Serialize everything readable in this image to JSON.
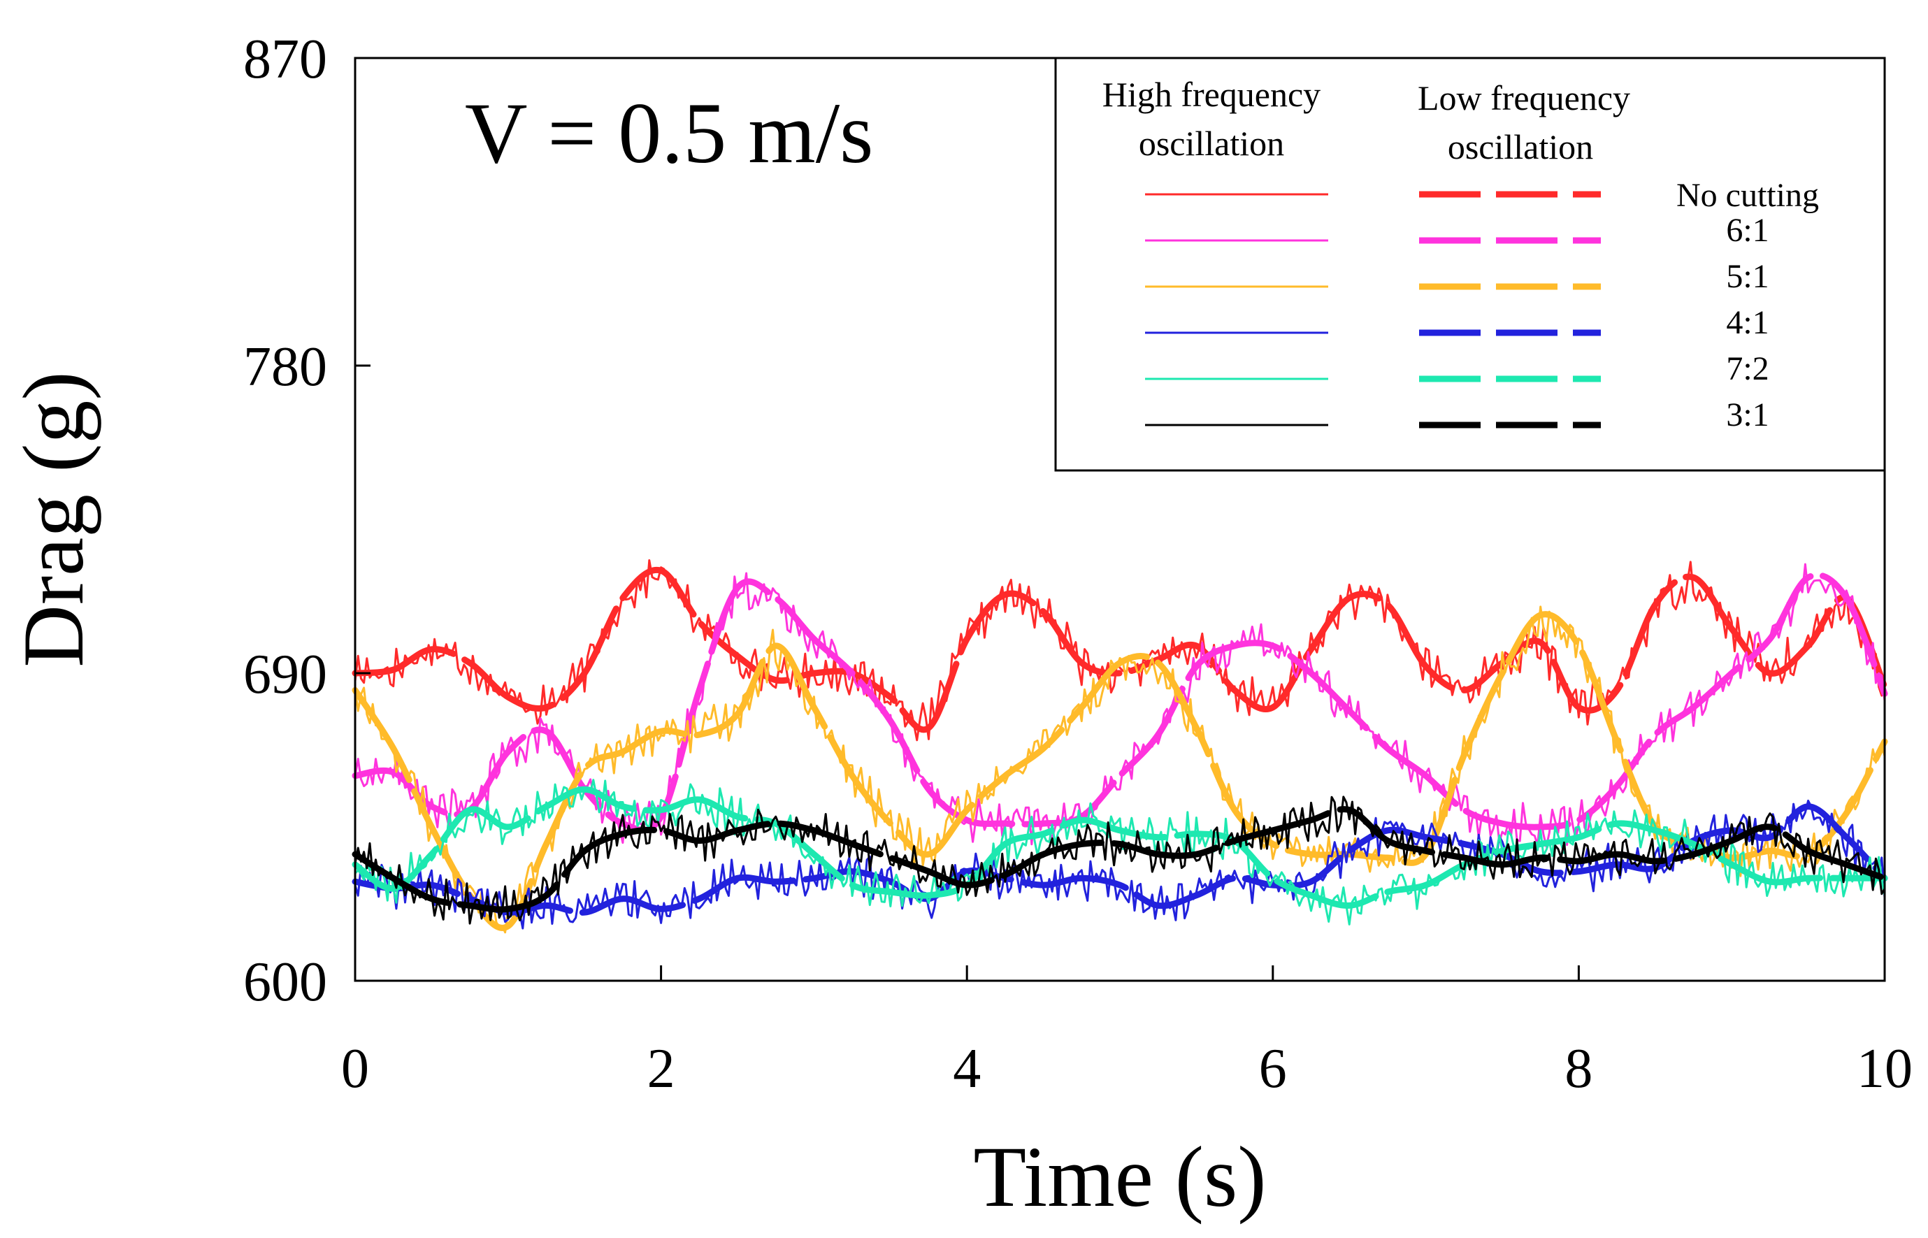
{
  "chart_data": {
    "type": "line",
    "annotation": "V = 0.5 m/s",
    "xlabel": "Time (s)",
    "ylabel": "Drag (g)",
    "xlim": [
      0,
      10
    ],
    "ylim": [
      600,
      870
    ],
    "xticks": [
      0,
      2,
      4,
      6,
      8,
      10
    ],
    "yticks": [
      600,
      690,
      780,
      870
    ],
    "legend": {
      "position": "top-right",
      "header_high": [
        "High frequency",
        "oscillation"
      ],
      "header_low": [
        "Low frequency",
        "oscillation"
      ]
    },
    "x": [
      0.0,
      0.25,
      0.5,
      0.75,
      1.0,
      1.25,
      1.5,
      1.75,
      2.0,
      2.25,
      2.5,
      2.75,
      3.0,
      3.25,
      3.5,
      3.75,
      4.0,
      4.25,
      4.5,
      4.75,
      5.0,
      5.25,
      5.5,
      5.75,
      6.0,
      6.25,
      6.5,
      6.75,
      7.0,
      7.25,
      7.5,
      7.75,
      8.0,
      8.25,
      8.5,
      8.75,
      9.0,
      9.25,
      9.5,
      9.75,
      10.0
    ],
    "series": [
      {
        "name": "No cutting",
        "color": "#ff2a2a",
        "values": [
          690,
          691,
          697,
          693,
          683,
          680,
          690,
          712,
          720,
          705,
          695,
          688,
          690,
          690,
          683,
          674,
          700,
          713,
          708,
          693,
          690,
          694,
          698,
          685,
          680,
          697,
          712,
          710,
          692,
          685,
          693,
          699,
          680,
          685,
          710,
          718,
          703,
          690,
          698,
          712,
          686
        ]
      },
      {
        "name": "6:1",
        "color": "#ff33dd",
        "values": [
          660,
          661,
          651,
          650,
          667,
          673,
          656,
          646,
          648,
          685,
          715,
          712,
          700,
          690,
          676,
          656,
          647,
          646,
          646,
          648,
          660,
          672,
          692,
          698,
          698,
          690,
          679,
          668,
          660,
          650,
          646,
          645,
          647,
          657,
          672,
          680,
          690,
          700,
          718,
          712,
          684
        ]
      },
      {
        "name": "5:1",
        "color": "#ffbb2a",
        "values": [
          685,
          668,
          645,
          625,
          616,
          640,
          662,
          667,
          673,
          672,
          678,
          698,
          680,
          660,
          646,
          637,
          650,
          660,
          668,
          680,
          693,
          693,
          674,
          650,
          640,
          637,
          637,
          636,
          637,
          666,
          690,
          707,
          698,
          670,
          645,
          640,
          636,
          638,
          637,
          649,
          670
        ]
      },
      {
        "name": "4:1",
        "color": "#2222dd",
        "values": [
          629,
          627,
          628,
          624,
          620,
          622,
          620,
          624,
          621,
          624,
          630,
          629,
          630,
          632,
          629,
          624,
          632,
          630,
          628,
          630,
          628,
          622,
          625,
          630,
          628,
          629,
          638,
          644,
          642,
          640,
          637,
          632,
          632,
          634,
          633,
          641,
          644,
          642,
          651,
          642,
          630
        ]
      },
      {
        "name": "7:2",
        "color": "#1de8b0",
        "values": [
          634,
          627,
          637,
          650,
          645,
          651,
          656,
          651,
          650,
          653,
          648,
          646,
          637,
          628,
          626,
          625,
          628,
          640,
          643,
          647,
          644,
          642,
          643,
          641,
          630,
          625,
          622,
          626,
          628,
          634,
          638,
          640,
          642,
          646,
          644,
          640,
          634,
          629,
          630,
          630,
          630
        ]
      },
      {
        "name": "3:1",
        "color": "#000000",
        "values": [
          637,
          630,
          624,
          622,
          621,
          625,
          638,
          643,
          644,
          641,
          644,
          646,
          644,
          640,
          636,
          632,
          628,
          631,
          637,
          640,
          640,
          637,
          637,
          641,
          644,
          647,
          650,
          641,
          638,
          636,
          634,
          636,
          635,
          637,
          635,
          637,
          641,
          645,
          638,
          634,
          630
        ]
      }
    ]
  }
}
